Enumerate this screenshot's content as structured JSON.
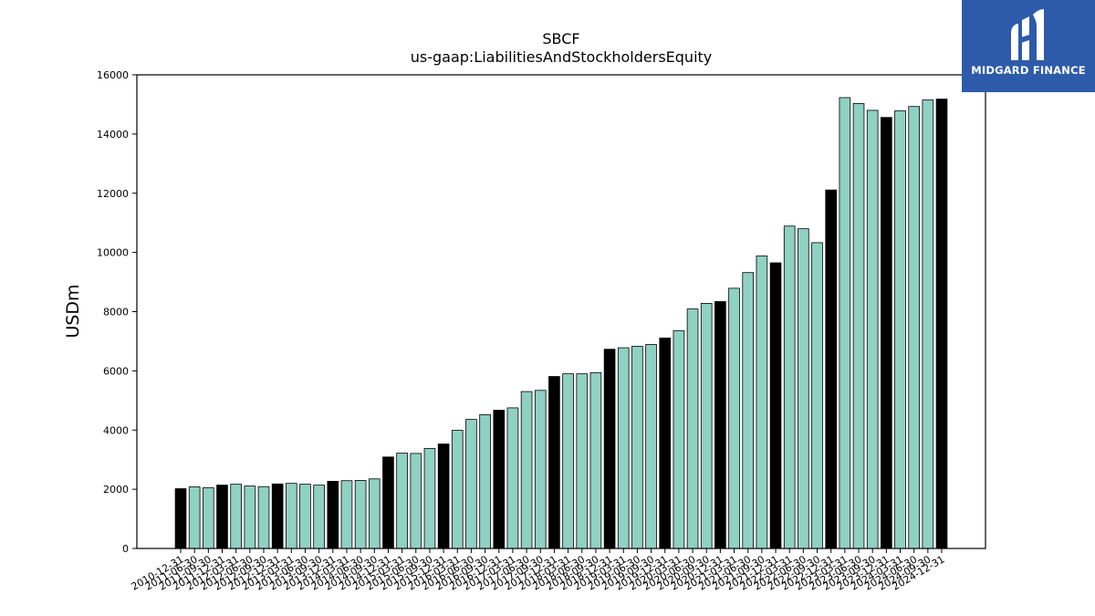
{
  "brand": {
    "name": "MIDGARD FINANCE",
    "logo_icon": "midgard-logo-icon",
    "background_color": "#2d5baa"
  },
  "colors": {
    "bar_highlight": "#000000",
    "bar_normal": "#8fd1c3",
    "bar_edge": "#000000"
  },
  "chart_data": {
    "type": "bar",
    "title": "SBCF",
    "subtitle": "us-gaap:LiabilitiesAndStockholdersEquity",
    "xlabel": "",
    "ylabel": "USDm",
    "ylim": [
      0,
      16000
    ],
    "yticks": [
      0,
      2000,
      4000,
      6000,
      8000,
      10000,
      12000,
      14000,
      16000
    ],
    "grid": false,
    "categories": [
      "2010-12-31",
      "2011-06-30",
      "2011-09-30",
      "2011-12-31",
      "2012-03-31",
      "2012-06-30",
      "2012-09-30",
      "2012-12-31",
      "2013-03-31",
      "2013-06-30",
      "2013-09-30",
      "2013-12-31",
      "2014-03-31",
      "2014-06-30",
      "2014-09-30",
      "2014-12-31",
      "2015-03-31",
      "2015-06-30",
      "2015-09-30",
      "2015-12-31",
      "2016-03-31",
      "2016-06-30",
      "2016-09-30",
      "2016-12-31",
      "2017-03-31",
      "2017-06-30",
      "2017-09-30",
      "2017-12-31",
      "2018-03-31",
      "2018-06-30",
      "2018-09-30",
      "2018-12-31",
      "2019-03-31",
      "2019-06-30",
      "2019-09-30",
      "2019-12-31",
      "2020-03-31",
      "2020-06-30",
      "2020-09-30",
      "2020-12-31",
      "2021-03-31",
      "2021-06-30",
      "2021-09-30",
      "2021-12-31",
      "2022-03-31",
      "2022-06-30",
      "2022-09-30",
      "2022-12-31",
      "2023-03-31",
      "2023-06-30",
      "2023-09-30",
      "2023-12-31",
      "2024-03-31",
      "2024-06-30",
      "2024-09-30",
      "2024-12-31"
    ],
    "values": [
      2020,
      2080,
      2050,
      2140,
      2170,
      2110,
      2090,
      2180,
      2200,
      2170,
      2140,
      2270,
      2290,
      2300,
      2350,
      3090,
      3220,
      3210,
      3380,
      3530,
      3990,
      4360,
      4520,
      4670,
      4750,
      5300,
      5340,
      5810,
      5900,
      5900,
      5940,
      6730,
      6780,
      6830,
      6890,
      7110,
      7360,
      8090,
      8280,
      8340,
      8790,
      9320,
      9880,
      9650,
      10890,
      10800,
      10330,
      12110,
      15230,
      15030,
      14800,
      14560,
      14790,
      14930,
      15150,
      15180
    ],
    "highlight_indices": [
      0,
      3,
      7,
      11,
      15,
      19,
      23,
      27,
      31,
      35,
      39,
      43,
      47,
      51,
      55
    ]
  }
}
